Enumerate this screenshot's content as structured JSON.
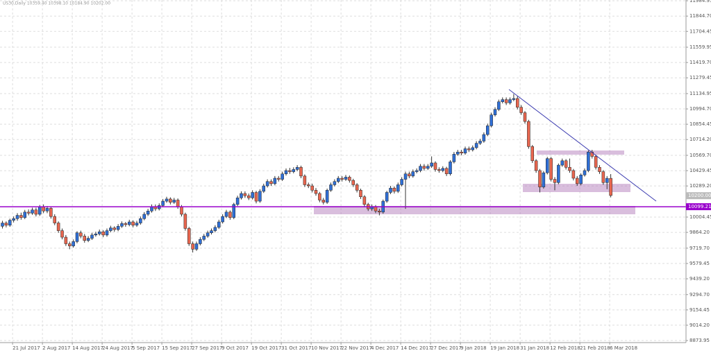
{
  "chart_data": {
    "type": "candlestick",
    "title": "US30,Daily  10359.40 10398.10 10184.90 10202.00",
    "bull_color": "#2f6fd6",
    "bear_color": "#e8664f",
    "grid": true,
    "ylim": [
      8855,
      11992
    ],
    "yticks": [
      8873.95,
      {
        "value": 9014.2,
        "label": "9014.20"
      },
      9154.45,
      {
        "value": 9294.7,
        "label": "9294.70"
      },
      {
        "value": 9439.2,
        "label": "9439.20"
      },
      9579.45,
      {
        "value": 9719.7,
        "label": "9719.70"
      },
      {
        "value": 9864.2,
        "label": "9864.20"
      },
      10004.45,
      {
        "value": 10289.2,
        "label": "10289.20"
      },
      10429.45,
      {
        "value": 10569.7,
        "label": "10569.70"
      },
      {
        "value": 10714.2,
        "label": "10714.20"
      },
      10854.45,
      {
        "value": 10994.7,
        "label": "10994.70"
      },
      11134.95,
      11279.45,
      {
        "value": 11419.7,
        "label": "11419.70"
      },
      11559.95,
      11704.45,
      {
        "value": 11844.7,
        "label": "11844.70"
      },
      11984.95
    ],
    "support_line": 10099.21,
    "support_color": "#9900cc",
    "current_price": {
      "value": 10200,
      "label": "10200.00"
    },
    "categories": [
      null,
      null,
      null,
      "21 Jul 2017",
      null,
      null,
      null,
      null,
      null,
      null,
      null,
      "2 Aug 2017",
      null,
      null,
      null,
      null,
      null,
      null,
      null,
      "14 Aug 2017",
      null,
      null,
      null,
      null,
      null,
      null,
      null,
      "24 Aug 2017",
      null,
      null,
      null,
      null,
      null,
      null,
      null,
      "5 Sep 2017",
      null,
      null,
      null,
      null,
      null,
      null,
      null,
      "15 Sep 2017",
      null,
      null,
      null,
      null,
      null,
      null,
      null,
      "27 Sep 2017",
      null,
      null,
      null,
      null,
      null,
      null,
      null,
      "9 Oct 2017",
      null,
      null,
      null,
      null,
      null,
      null,
      null,
      "19 Oct 2017",
      null,
      null,
      null,
      null,
      null,
      null,
      null,
      "31 Oct 2017",
      null,
      null,
      null,
      null,
      null,
      null,
      null,
      "10 Nov 2017",
      null,
      null,
      null,
      null,
      null,
      null,
      null,
      "22 Nov 2017",
      null,
      null,
      null,
      null,
      null,
      null,
      null,
      "4 Dec 2017",
      null,
      null,
      null,
      null,
      null,
      null,
      null,
      "14 Dec 2017",
      null,
      null,
      null,
      null,
      null,
      null,
      null,
      "27 Dec 2017",
      null,
      null,
      null,
      null,
      null,
      null,
      null,
      "9 Jan 2018",
      null,
      null,
      null,
      null,
      null,
      null,
      null,
      "19 Jan 2018",
      null,
      null,
      null,
      null,
      null,
      null,
      null,
      "31 Jan 2018",
      null,
      null,
      null,
      null,
      null,
      null,
      null,
      "12 Feb 2018",
      null,
      null,
      null,
      null,
      null,
      null,
      null,
      "21 Feb 2018",
      null,
      null,
      null,
      null,
      null,
      null,
      null,
      "6 Mar 2018"
    ],
    "candles": [
      [
        9920,
        9970,
        9900,
        9950
      ],
      [
        9950,
        9965,
        9910,
        9930
      ],
      [
        9930,
        9990,
        9915,
        9975
      ],
      [
        9975,
        10010,
        9955,
        9990
      ],
      [
        9990,
        10040,
        9970,
        10020
      ],
      [
        10020,
        10045,
        9980,
        10000
      ],
      [
        10000,
        10070,
        9985,
        10050
      ],
      [
        10050,
        10075,
        10020,
        10040
      ],
      [
        10040,
        10090,
        10025,
        10070
      ],
      [
        10070,
        10090,
        10010,
        10030
      ],
      [
        10030,
        10115,
        10015,
        10100
      ],
      [
        10100,
        10120,
        10040,
        10060
      ],
      [
        10060,
        10105,
        10040,
        10085
      ],
      [
        10085,
        10100,
        9990,
        10010
      ],
      [
        10010,
        10030,
        9930,
        9950
      ],
      [
        9950,
        9965,
        9860,
        9880
      ],
      [
        9880,
        9900,
        9800,
        9820
      ],
      [
        9820,
        9840,
        9740,
        9760
      ],
      [
        9760,
        9780,
        9710,
        9740
      ],
      [
        9740,
        9800,
        9725,
        9780
      ],
      [
        9780,
        9875,
        9765,
        9860
      ],
      [
        9860,
        9880,
        9810,
        9830
      ],
      [
        9830,
        9850,
        9770,
        9790
      ],
      [
        9790,
        9830,
        9775,
        9810
      ],
      [
        9810,
        9860,
        9795,
        9840
      ],
      [
        9840,
        9870,
        9825,
        9850
      ],
      [
        9850,
        9890,
        9835,
        9870
      ],
      [
        9870,
        9885,
        9820,
        9840
      ],
      [
        9840,
        9900,
        9825,
        9880
      ],
      [
        9880,
        9925,
        9865,
        9905
      ],
      [
        9905,
        9920,
        9870,
        9890
      ],
      [
        9890,
        9940,
        9875,
        9920
      ],
      [
        9920,
        9965,
        9905,
        9945
      ],
      [
        9945,
        9960,
        9915,
        9935
      ],
      [
        9935,
        9980,
        9920,
        9960
      ],
      [
        9960,
        9975,
        9910,
        9930
      ],
      [
        9930,
        9970,
        9915,
        9950
      ],
      [
        9950,
        10010,
        9935,
        9990
      ],
      [
        9990,
        10050,
        9975,
        10030
      ],
      [
        10030,
        10080,
        10015,
        10060
      ],
      [
        10060,
        10120,
        10045,
        10100
      ],
      [
        10100,
        10120,
        10060,
        10080
      ],
      [
        10080,
        10130,
        10065,
        10110
      ],
      [
        10110,
        10170,
        10095,
        10150
      ],
      [
        10150,
        10190,
        10135,
        10170
      ],
      [
        10170,
        10185,
        10120,
        10140
      ],
      [
        10140,
        10180,
        10125,
        10160
      ],
      [
        10160,
        10175,
        10080,
        10100
      ],
      [
        10100,
        10115,
        10010,
        10030
      ],
      [
        10030,
        10045,
        9880,
        9900
      ],
      [
        9900,
        9915,
        9740,
        9760
      ],
      [
        9760,
        9780,
        9680,
        9710
      ],
      [
        9710,
        9780,
        9695,
        9760
      ],
      [
        9760,
        9820,
        9745,
        9800
      ],
      [
        9800,
        9850,
        9785,
        9830
      ],
      [
        9830,
        9880,
        9815,
        9860
      ],
      [
        9860,
        9900,
        9845,
        9880
      ],
      [
        9880,
        9930,
        9865,
        9910
      ],
      [
        9910,
        9980,
        9895,
        9960
      ],
      [
        9960,
        10030,
        9945,
        10010
      ],
      [
        10010,
        10070,
        9995,
        10050
      ],
      [
        10050,
        10065,
        9980,
        10000
      ],
      [
        10000,
        10135,
        9985,
        10120
      ],
      [
        10120,
        10200,
        10105,
        10180
      ],
      [
        10180,
        10240,
        10165,
        10220
      ],
      [
        10220,
        10240,
        10180,
        10200
      ],
      [
        10200,
        10220,
        10160,
        10180
      ],
      [
        10180,
        10250,
        10165,
        10230
      ],
      [
        10230,
        10245,
        10130,
        10150
      ],
      [
        10150,
        10260,
        10135,
        10240
      ],
      [
        10240,
        10310,
        10225,
        10290
      ],
      [
        10290,
        10350,
        10275,
        10330
      ],
      [
        10330,
        10350,
        10290,
        10310
      ],
      [
        10310,
        10380,
        10295,
        10360
      ],
      [
        10360,
        10380,
        10330,
        10350
      ],
      [
        10350,
        10420,
        10335,
        10400
      ],
      [
        10400,
        10450,
        10385,
        10430
      ],
      [
        10430,
        10455,
        10400,
        10420
      ],
      [
        10420,
        10460,
        10405,
        10440
      ],
      [
        10440,
        10480,
        10425,
        10460
      ],
      [
        10460,
        10475,
        10360,
        10380
      ],
      [
        10380,
        10395,
        10280,
        10300
      ],
      [
        10300,
        10320,
        10270,
        10290
      ],
      [
        10290,
        10310,
        10230,
        10250
      ],
      [
        10250,
        10270,
        10200,
        10220
      ],
      [
        10220,
        10235,
        10140,
        10160
      ],
      [
        10160,
        10180,
        10120,
        10140
      ],
      [
        10140,
        10265,
        10125,
        10250
      ],
      [
        10250,
        10320,
        10235,
        10300
      ],
      [
        10300,
        10350,
        10285,
        10330
      ],
      [
        10330,
        10380,
        10315,
        10360
      ],
      [
        10360,
        10380,
        10330,
        10350
      ],
      [
        10350,
        10390,
        10335,
        10370
      ],
      [
        10370,
        10385,
        10320,
        10340
      ],
      [
        10340,
        10355,
        10280,
        10300
      ],
      [
        10300,
        10315,
        10230,
        10250
      ],
      [
        10250,
        10265,
        10170,
        10190
      ],
      [
        10190,
        10205,
        10100,
        10120
      ],
      [
        10120,
        10135,
        10060,
        10080
      ],
      [
        10080,
        10120,
        10060,
        10100
      ],
      [
        10100,
        10115,
        10040,
        10060
      ],
      [
        10060,
        10080,
        10020,
        10050
      ],
      [
        10050,
        10165,
        10035,
        10150
      ],
      [
        10150,
        10245,
        10135,
        10230
      ],
      [
        10230,
        10290,
        10215,
        10270
      ],
      [
        10270,
        10285,
        10220,
        10240
      ],
      [
        10240,
        10320,
        10225,
        10300
      ],
      [
        10300,
        10370,
        10285,
        10350
      ],
      [
        10350,
        10420,
        10080,
        10400
      ],
      [
        10400,
        10420,
        10360,
        10380
      ],
      [
        10380,
        10440,
        10365,
        10420
      ],
      [
        10420,
        10450,
        10405,
        10430
      ],
      [
        10430,
        10490,
        10415,
        10470
      ],
      [
        10470,
        10490,
        10430,
        10450
      ],
      [
        10450,
        10490,
        10435,
        10470
      ],
      [
        10470,
        10560,
        10455,
        10500
      ],
      [
        10500,
        10515,
        10420,
        10440
      ],
      [
        10440,
        10460,
        10410,
        10430
      ],
      [
        10430,
        10470,
        10415,
        10450
      ],
      [
        10450,
        10465,
        10380,
        10400
      ],
      [
        10400,
        10525,
        10385,
        10510
      ],
      [
        10510,
        10600,
        10495,
        10580
      ],
      [
        10580,
        10620,
        10565,
        10600
      ],
      [
        10600,
        10620,
        10570,
        10590
      ],
      [
        10590,
        10650,
        10575,
        10630
      ],
      [
        10630,
        10650,
        10600,
        10620
      ],
      [
        10620,
        10660,
        10605,
        10640
      ],
      [
        10640,
        10700,
        10625,
        10680
      ],
      [
        10680,
        10720,
        10665,
        10700
      ],
      [
        10700,
        10780,
        10685,
        10760
      ],
      [
        10760,
        10860,
        10745,
        10840
      ],
      [
        10840,
        10960,
        10825,
        10940
      ],
      [
        10940,
        11010,
        10925,
        10990
      ],
      [
        10990,
        11080,
        10975,
        11060
      ],
      [
        11060,
        11100,
        11045,
        11080
      ],
      [
        11080,
        11100,
        11030,
        11050
      ],
      [
        11050,
        11100,
        11035,
        11080
      ],
      [
        11080,
        11130,
        11065,
        11090
      ],
      [
        11090,
        11110,
        10990,
        11010
      ],
      [
        11010,
        11030,
        10940,
        10960
      ],
      [
        10960,
        10975,
        10860,
        10880
      ],
      [
        10880,
        10895,
        10630,
        10650
      ],
      [
        10650,
        10665,
        10500,
        10520
      ],
      [
        10520,
        10535,
        10410,
        10430
      ],
      [
        10430,
        10445,
        10230,
        10280
      ],
      [
        10280,
        10425,
        10265,
        10410
      ],
      [
        10410,
        10555,
        10395,
        10540
      ],
      [
        10540,
        10555,
        10330,
        10350
      ],
      [
        10350,
        10370,
        10250,
        10320
      ],
      [
        10320,
        10495,
        10305,
        10480
      ],
      [
        10480,
        10540,
        10465,
        10520
      ],
      [
        10520,
        10535,
        10440,
        10460
      ],
      [
        10460,
        10540,
        10410,
        10430
      ],
      [
        10430,
        10445,
        10340,
        10360
      ],
      [
        10360,
        10380,
        10290,
        10310
      ],
      [
        10310,
        10405,
        10295,
        10390
      ],
      [
        10390,
        10450,
        10375,
        10430
      ],
      [
        10430,
        10615,
        10415,
        10600
      ],
      [
        10600,
        10620,
        10540,
        10560
      ],
      [
        10560,
        10575,
        10440,
        10460
      ],
      [
        10460,
        10480,
        10400,
        10420
      ],
      [
        10420,
        10435,
        10300,
        10320
      ],
      [
        10320,
        10380,
        10260,
        10359.4
      ],
      [
        10359.4,
        10398.1,
        10184.9,
        10202
      ]
    ]
  }
}
